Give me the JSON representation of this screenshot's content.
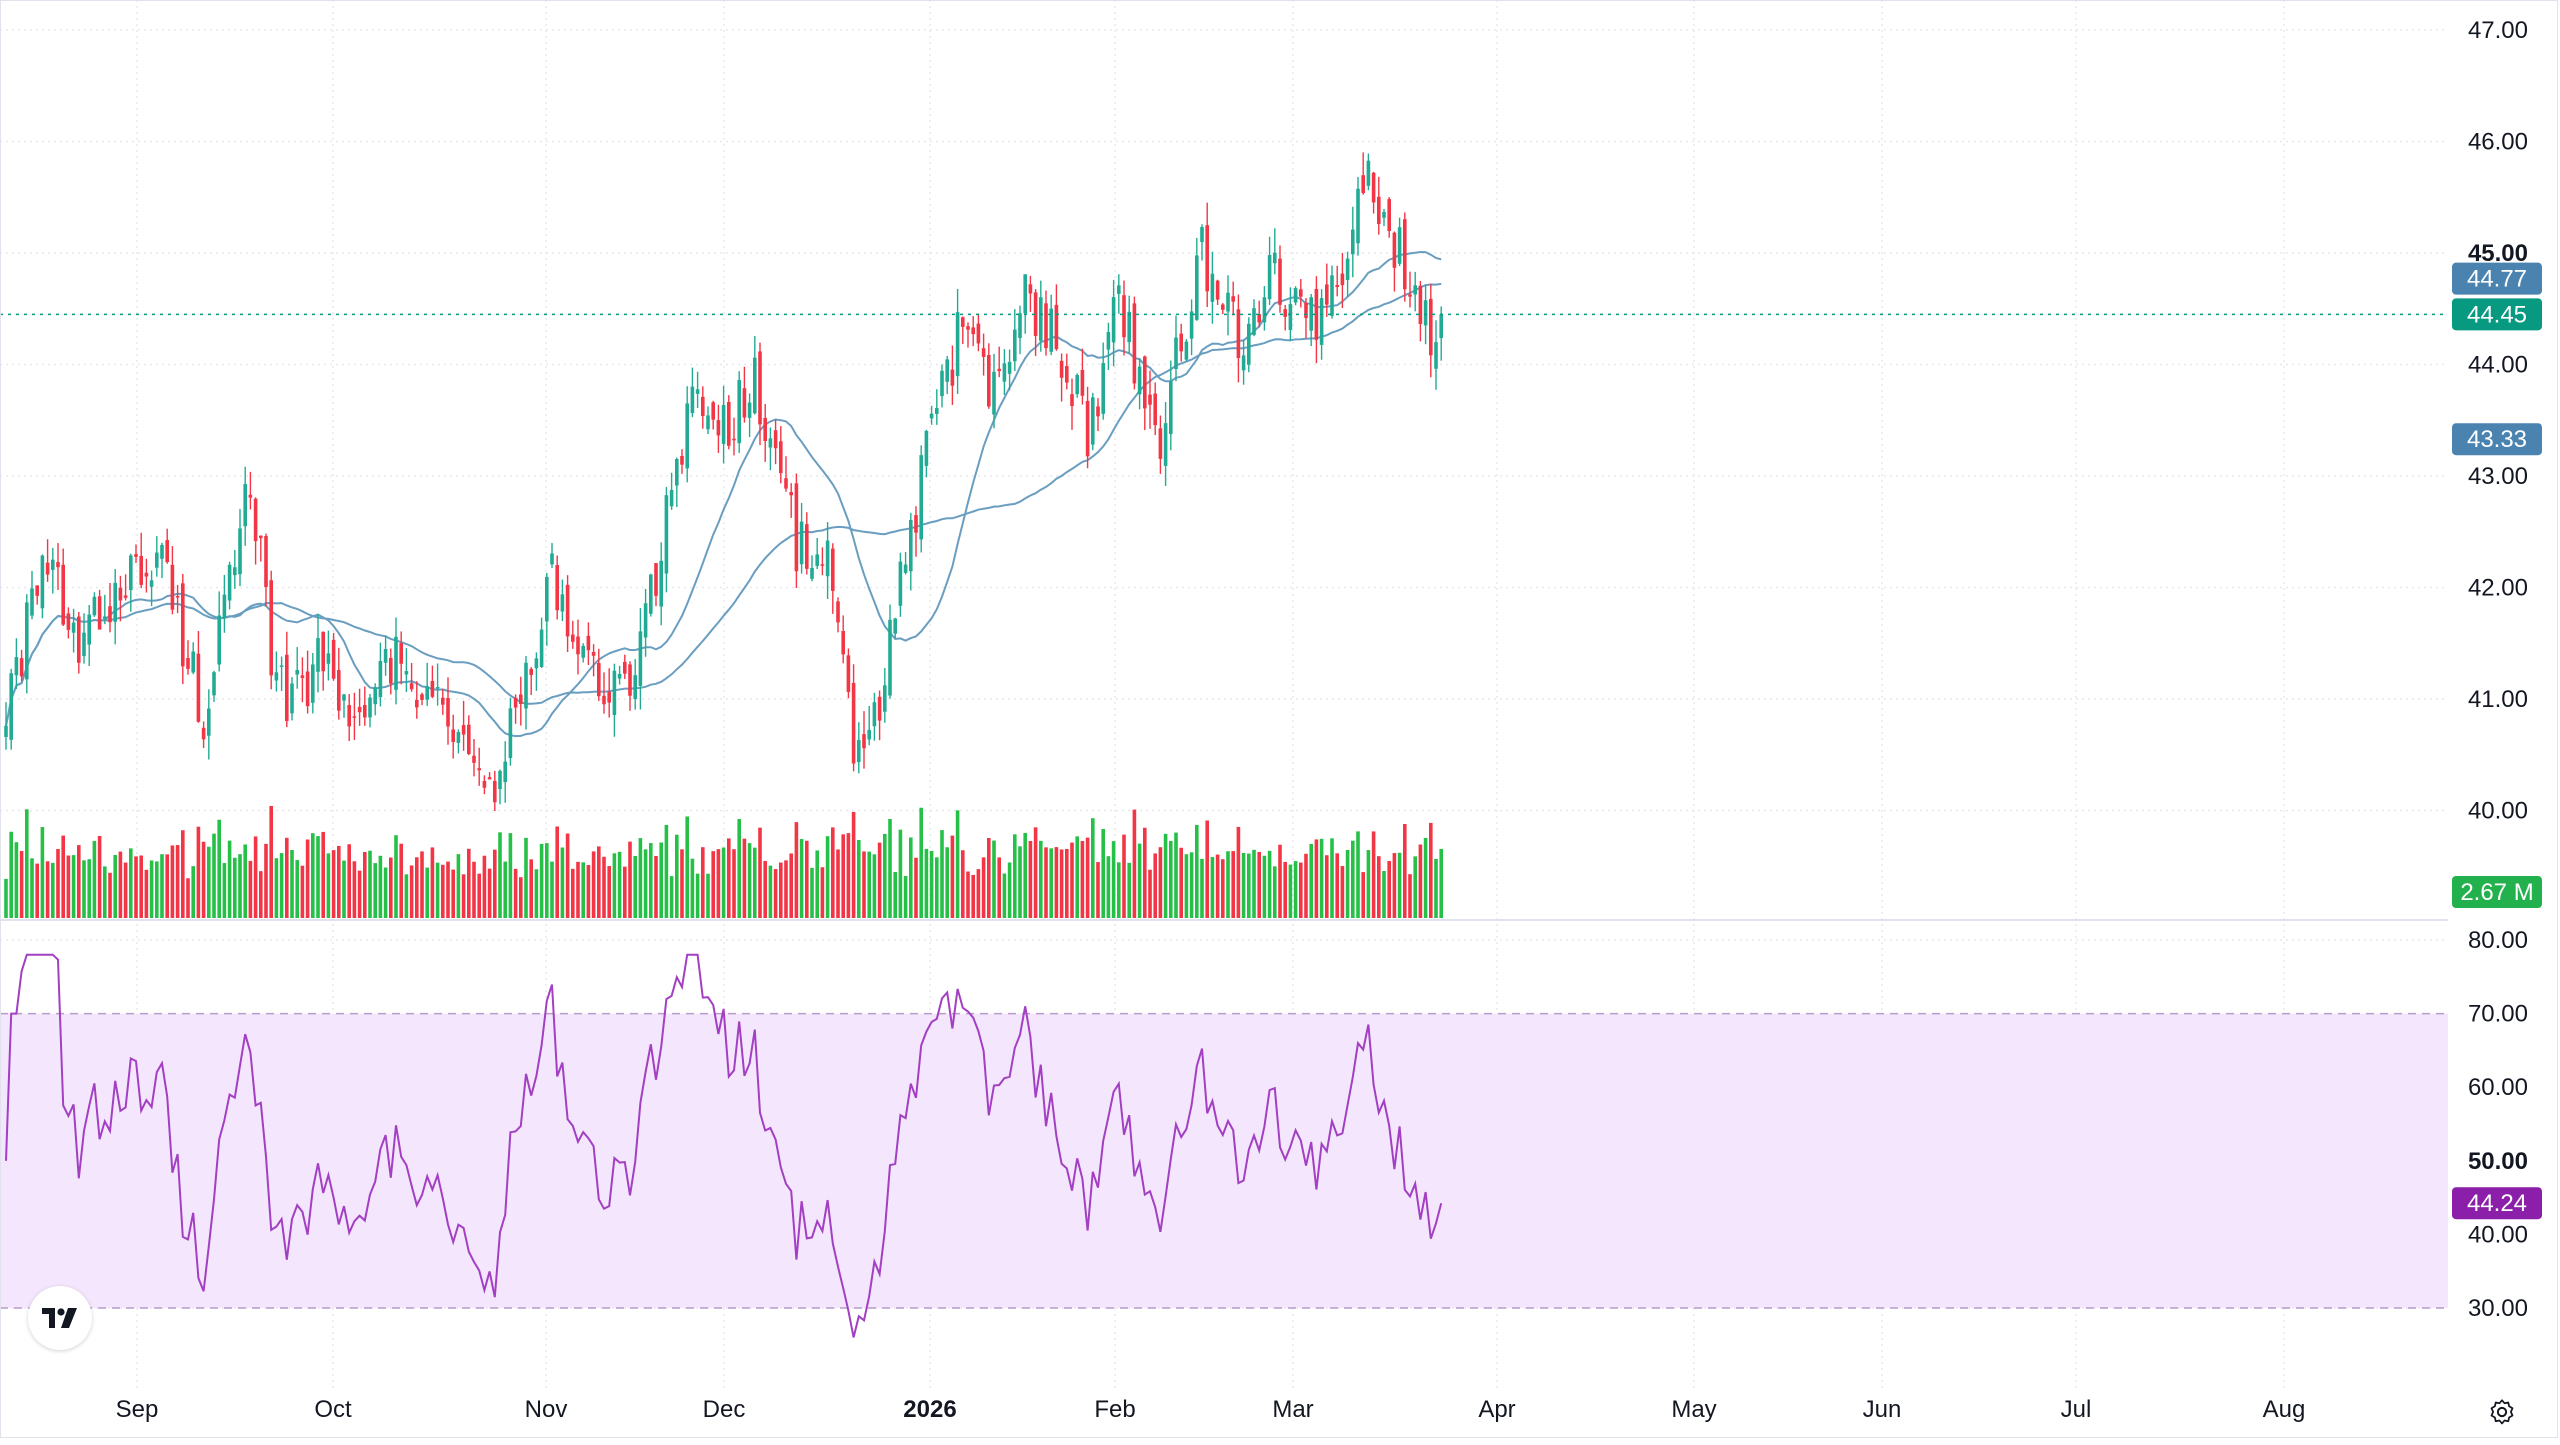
{
  "colors": {
    "up": "#22ab94",
    "up_fill": "#26c048",
    "down": "#f23645",
    "ma_line": "#6a9ec0",
    "ma_badge": "#4a82b0",
    "last_price_badge": "#089981",
    "volume_badge": "#22b14c",
    "rsi_line": "#a33fc2",
    "rsi_band": "#f3e6fd",
    "rsi_badge": "#8b1fa9",
    "grid": "#e6e8ee",
    "axis_text": "#131722"
  },
  "price_axis": {
    "labels": [
      "47.00",
      "46.00",
      "45.00",
      "44.00",
      "43.00",
      "42.00",
      "41.00",
      "40.00"
    ],
    "bold_label": "45.00"
  },
  "badges": {
    "ma_short": "44.77",
    "last_price": "44.45",
    "ma_long": "43.33",
    "volume": "2.67 M",
    "rsi": "44.24"
  },
  "rsi_axis": {
    "labels": [
      "80.00",
      "70.00",
      "60.00",
      "50.00",
      "40.00",
      "30.00"
    ],
    "bold_label": "50.00"
  },
  "time_axis": {
    "labels": [
      "Sep",
      "Oct",
      "Nov",
      "Dec",
      "2026",
      "Feb",
      "Mar",
      "Apr",
      "May",
      "Jun",
      "Jul",
      "Aug"
    ],
    "bold_label": "2026"
  },
  "icons": {
    "logo": "tradingview-logo-icon",
    "settings": "gear-icon"
  },
  "chart_data": {
    "type": "candlestick",
    "ylim": [
      39.0,
      47.0
    ],
    "last_price": 44.45,
    "start_price": 41.0,
    "moving_averages": [
      {
        "value_last": 44.77
      },
      {
        "value_last": 43.33
      }
    ],
    "volume_last": "2.67 M",
    "rsi": {
      "ylim": [
        25,
        80
      ],
      "band": [
        30,
        70
      ],
      "last": 44.24
    },
    "anchors": [
      [
        0,
        41.0
      ],
      [
        8,
        42.2
      ],
      [
        14,
        41.4
      ],
      [
        22,
        42.1
      ],
      [
        30,
        42.2
      ],
      [
        38,
        40.9
      ],
      [
        46,
        42.7
      ],
      [
        49,
        42.2
      ],
      [
        52,
        41.0
      ],
      [
        58,
        41.2
      ],
      [
        62,
        41.4
      ],
      [
        66,
        40.7
      ],
      [
        72,
        41.5
      ],
      [
        80,
        41.0
      ],
      [
        86,
        40.8
      ],
      [
        92,
        40.1
      ],
      [
        98,
        40.8
      ],
      [
        102,
        41.4
      ],
      [
        104,
        42.2
      ],
      [
        110,
        41.4
      ],
      [
        114,
        41.2
      ],
      [
        120,
        41.0
      ],
      [
        126,
        42.4
      ],
      [
        132,
        43.8
      ],
      [
        138,
        43.4
      ],
      [
        144,
        43.9
      ],
      [
        148,
        43.2
      ],
      [
        152,
        42.4
      ],
      [
        158,
        42.3
      ],
      [
        160,
        41.6
      ],
      [
        163,
        40.4
      ],
      [
        168,
        41.0
      ],
      [
        172,
        42.0
      ],
      [
        178,
        43.4
      ],
      [
        184,
        44.4
      ],
      [
        190,
        43.7
      ],
      [
        196,
        44.6
      ],
      [
        202,
        44.3
      ],
      [
        208,
        43.4
      ],
      [
        214,
        44.6
      ],
      [
        218,
        43.9
      ],
      [
        222,
        43.4
      ],
      [
        230,
        45.0
      ],
      [
        238,
        44.2
      ],
      [
        244,
        44.9
      ],
      [
        250,
        44.3
      ],
      [
        256,
        44.6
      ],
      [
        262,
        45.7
      ],
      [
        266,
        45.2
      ],
      [
        270,
        44.8
      ],
      [
        274,
        44.2
      ],
      [
        276,
        44.45
      ]
    ]
  }
}
